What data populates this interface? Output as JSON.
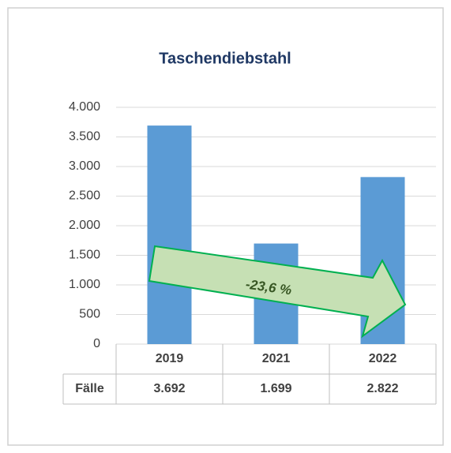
{
  "chart_data": {
    "type": "bar",
    "title": "Taschendiebstahl",
    "categories": [
      "2019",
      "2021",
      "2022"
    ],
    "series": [
      {
        "name": "Fälle",
        "color": "#5b9bd5",
        "values": [
          3692,
          1699,
          2822
        ],
        "value_labels": [
          "3.692",
          "1.699",
          "2.822"
        ]
      }
    ],
    "ylim": [
      0,
      4000
    ],
    "yticks": [
      0,
      500,
      {
        "value": 1000,
        "label": "1.000"
      },
      {
        "value": 1500,
        "label": "1.500"
      },
      {
        "value": 2000,
        "label": "2.000"
      },
      {
        "value": 2500,
        "label": "2.500"
      },
      {
        "value": 3000,
        "label": "3.000"
      },
      {
        "value": 3500,
        "label": "3.500"
      },
      {
        "value": 4000,
        "label": "4.000"
      }
    ],
    "grid": true,
    "annotation": "-23,6 %"
  }
}
